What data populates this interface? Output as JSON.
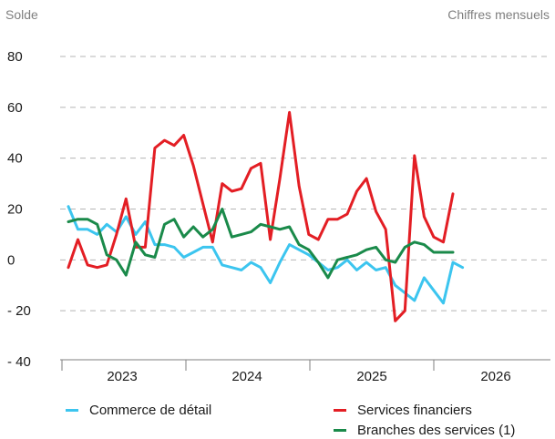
{
  "chart_data": {
    "type": "line",
    "ylabel": "Solde",
    "note": "Chiffres mensuels",
    "ylim": [
      -40,
      80
    ],
    "yticks": [
      80,
      60,
      40,
      20,
      0,
      -20,
      -40
    ],
    "ytick_labels": [
      "80",
      "60",
      "40",
      "20",
      "0",
      "- 20",
      "- 40"
    ],
    "grid": "horizontal-dashed",
    "years": [
      "2023",
      "2024",
      "2025",
      "2026"
    ],
    "x_start": "2022-10",
    "series": [
      {
        "name": "Commerce de détail",
        "color": "#3cc5ef",
        "values": [
          21,
          12,
          12,
          10,
          14,
          11,
          17,
          10,
          15,
          6,
          6,
          5,
          1,
          3,
          5,
          5,
          -2,
          -3,
          -4,
          -1,
          -3,
          -9,
          -1,
          6,
          4,
          2,
          -1,
          -4,
          -3,
          0,
          -4,
          -1,
          -4,
          -3,
          -10,
          -13,
          -16,
          -7,
          -12,
          -17,
          -1,
          -3
        ]
      },
      {
        "name": "Services financiers",
        "color": "#e31e24",
        "values": [
          -3,
          8,
          -2,
          -3,
          -2,
          10,
          24,
          5,
          5,
          44,
          47,
          45,
          49,
          37,
          22,
          7,
          30,
          27,
          28,
          36,
          38,
          8,
          32,
          58,
          29,
          10,
          8,
          16,
          16,
          18,
          27,
          32,
          19,
          12,
          -24,
          -20,
          41,
          17,
          9,
          7,
          26
        ]
      },
      {
        "name": "Branches des services (1)",
        "color": "#1a8a4a",
        "values": [
          15,
          16,
          16,
          14,
          2,
          0,
          -6,
          7,
          2,
          1,
          14,
          16,
          9,
          13,
          9,
          12,
          20,
          9,
          10,
          11,
          14,
          13,
          12,
          13,
          6,
          4,
          -1,
          -7,
          0,
          1,
          2,
          4,
          5,
          0,
          -1,
          5,
          7,
          6,
          3,
          3,
          3
        ]
      }
    ],
    "legend_position": "bottom"
  }
}
